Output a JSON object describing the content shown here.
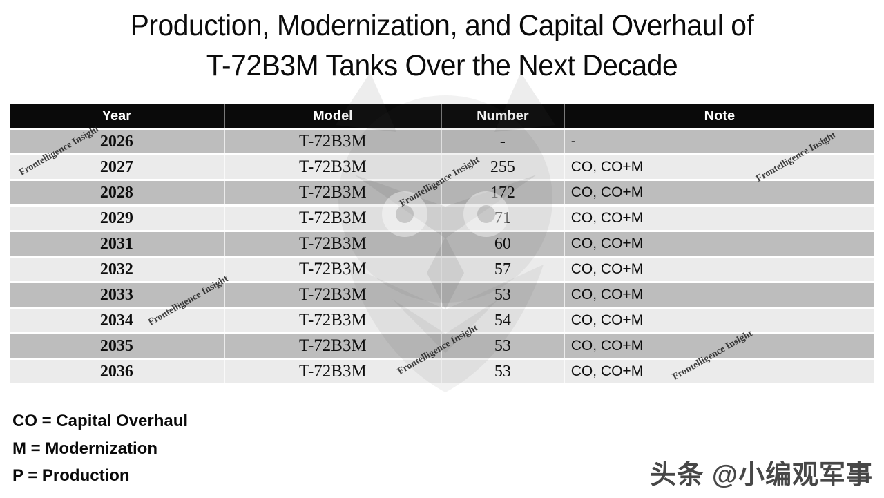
{
  "title": {
    "line1": "Production, Modernization, and Capital Overhaul of",
    "line2": "T-72B3M Tanks Over the Next Decade"
  },
  "chart_data": {
    "type": "table",
    "title": "Production, Modernization, and Capital Overhaul of T-72B3M Tanks Over the Next Decade",
    "columns": [
      "Year",
      "Model",
      "Number",
      "Note"
    ],
    "rows": [
      [
        "2026",
        "T-72B3M",
        "-",
        "-"
      ],
      [
        "2027",
        "T-72B3M",
        "255",
        "CO, CO+M"
      ],
      [
        "2028",
        "T-72B3M",
        "172",
        "CO, CO+M"
      ],
      [
        "2029",
        "T-72B3M",
        "71",
        "CO, CO+M"
      ],
      [
        "2031",
        "T-72B3M",
        "60",
        "CO, CO+M"
      ],
      [
        "2032",
        "T-72B3M",
        "57",
        "CO, CO+M"
      ],
      [
        "2033",
        "T-72B3M",
        "53",
        "CO, CO+M"
      ],
      [
        "2034",
        "T-72B3M",
        "54",
        "CO, CO+M"
      ],
      [
        "2035",
        "T-72B3M",
        "53",
        "CO, CO+M"
      ],
      [
        "2036",
        "T-72B3M",
        "53",
        "CO, CO+M"
      ]
    ],
    "footnotes": [
      "CO = Capital Overhaul",
      "M = Modernization",
      "P = Production"
    ],
    "layout_hints": {
      "striped": true,
      "header_style": "black-on-white-text"
    }
  },
  "legend": {
    "items": [
      "CO = Capital Overhaul",
      "M = Modernization",
      "P = Production"
    ]
  },
  "watermarks": {
    "diagonal_text": "Frontelligence Insight",
    "bottom_right": "头条 @小编观军事"
  },
  "colors": {
    "header_bg": "#0a0a0a",
    "header_text": "#ffffff",
    "row_dark": "#bdbdbd",
    "row_light": "#ebebeb",
    "page_bg": "#ffffff",
    "byline_text": "#474747"
  }
}
